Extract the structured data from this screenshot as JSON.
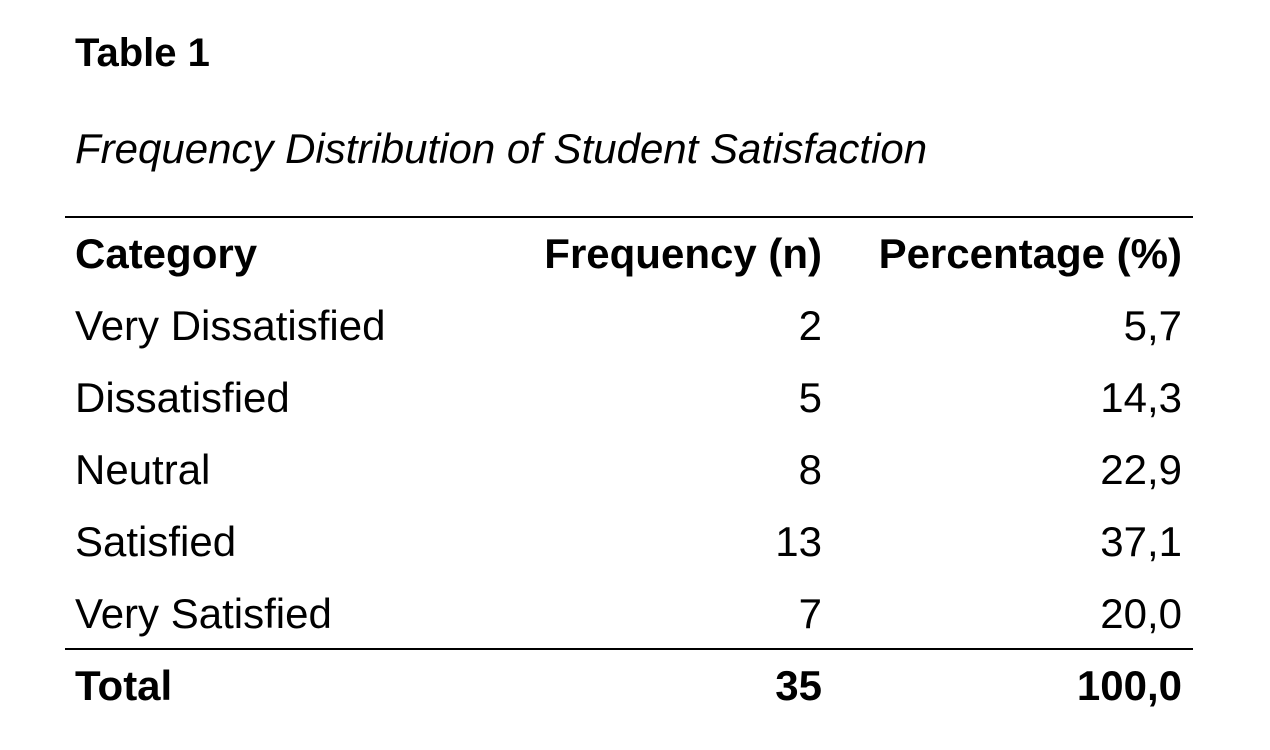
{
  "title": "Table 1",
  "subtitle": "Frequency Distribution of Student Satisfaction",
  "table": {
    "header": [
      "Category",
      "Frequency (n)",
      "Percentage (%)"
    ],
    "rows": [
      [
        "Very Dissatisfied",
        "2",
        "5,7"
      ],
      [
        "Dissatisfied",
        "5",
        "14,3"
      ],
      [
        "Neutral",
        "8",
        "22,9"
      ],
      [
        "Satisfied",
        "13",
        "37,1"
      ],
      [
        "Very Satisfied",
        "7",
        "20,0"
      ]
    ],
    "total": [
      "Total",
      "35",
      "100,0"
    ]
  }
}
